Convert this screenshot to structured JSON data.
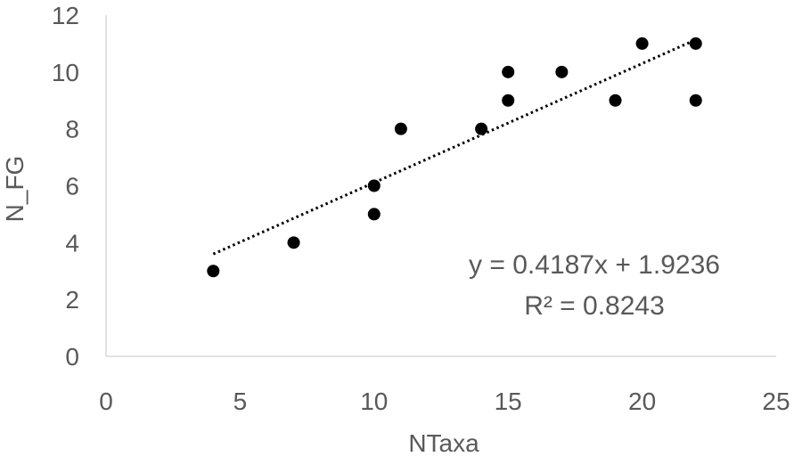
{
  "chart_data": {
    "type": "scatter",
    "title": "",
    "xlabel": "NTaxa",
    "ylabel": "N_FG",
    "xlim": [
      0,
      25
    ],
    "ylim": [
      0,
      12
    ],
    "x_ticks": [
      0,
      5,
      10,
      15,
      20,
      25
    ],
    "y_ticks": [
      0,
      2,
      4,
      6,
      8,
      10,
      12
    ],
    "grid": false,
    "legend": "none",
    "series": [
      {
        "points": [
          {
            "x": 4,
            "y": 3
          },
          {
            "x": 7,
            "y": 4
          },
          {
            "x": 10,
            "y": 5
          },
          {
            "x": 10,
            "y": 6
          },
          {
            "x": 11,
            "y": 8
          },
          {
            "x": 14,
            "y": 8
          },
          {
            "x": 15,
            "y": 9
          },
          {
            "x": 15,
            "y": 10
          },
          {
            "x": 17,
            "y": 10
          },
          {
            "x": 19,
            "y": 9
          },
          {
            "x": 20,
            "y": 11
          },
          {
            "x": 22,
            "y": 9
          },
          {
            "x": 22,
            "y": 11
          }
        ],
        "color": "#000000"
      }
    ],
    "trendline": {
      "type": "linear",
      "slope": 0.4187,
      "intercept": 1.9236,
      "x_range": [
        4,
        22
      ],
      "style": "dotted",
      "color": "#000000"
    },
    "annotations": [
      {
        "text": "y = 0.4187x + 1.9236"
      },
      {
        "text": "R² = 0.8243"
      }
    ],
    "axis_color": "#d9d9d9",
    "text_color": "#595959"
  }
}
